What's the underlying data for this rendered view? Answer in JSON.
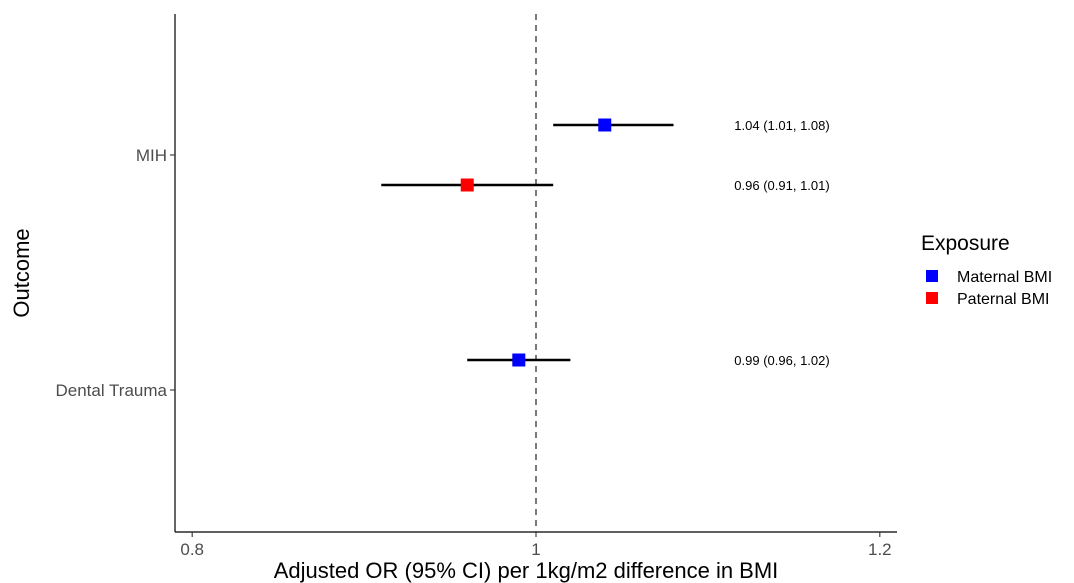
{
  "chart_data": {
    "type": "forest",
    "xlabel": "Adjusted OR (95% CI) per 1kg/m2 difference in BMI",
    "ylabel": "Outcome",
    "xlim": [
      0.79,
      1.21
    ],
    "x_ticks": [
      {
        "value": 0.8,
        "label": "0.8"
      },
      {
        "value": 1.0,
        "label": "1"
      },
      {
        "value": 1.2,
        "label": "1.2"
      }
    ],
    "reference_line": 1.0,
    "categories": [
      "MIH",
      "Dental Trauma"
    ],
    "legend": {
      "title": "Exposure",
      "position": "right",
      "items": [
        {
          "label": "Maternal BMI",
          "color": "#0000ff"
        },
        {
          "label": "Paternal BMI",
          "color": "#ff0000"
        }
      ]
    },
    "points": [
      {
        "outcome": "MIH",
        "exposure": "Maternal BMI",
        "estimate": 1.04,
        "lower": 1.01,
        "upper": 1.08,
        "label": "1.04 (1.01, 1.08)",
        "color": "#0000ff"
      },
      {
        "outcome": "MIH",
        "exposure": "Paternal BMI",
        "estimate": 0.96,
        "lower": 0.91,
        "upper": 1.01,
        "label": "0.96 (0.91, 1.01)",
        "color": "#ff0000"
      },
      {
        "outcome": "Dental Trauma",
        "exposure": "Maternal BMI",
        "estimate": 0.99,
        "lower": 0.96,
        "upper": 1.02,
        "label": "0.99 (0.96, 1.02)",
        "color": "#0000ff"
      }
    ],
    "grid": false
  }
}
